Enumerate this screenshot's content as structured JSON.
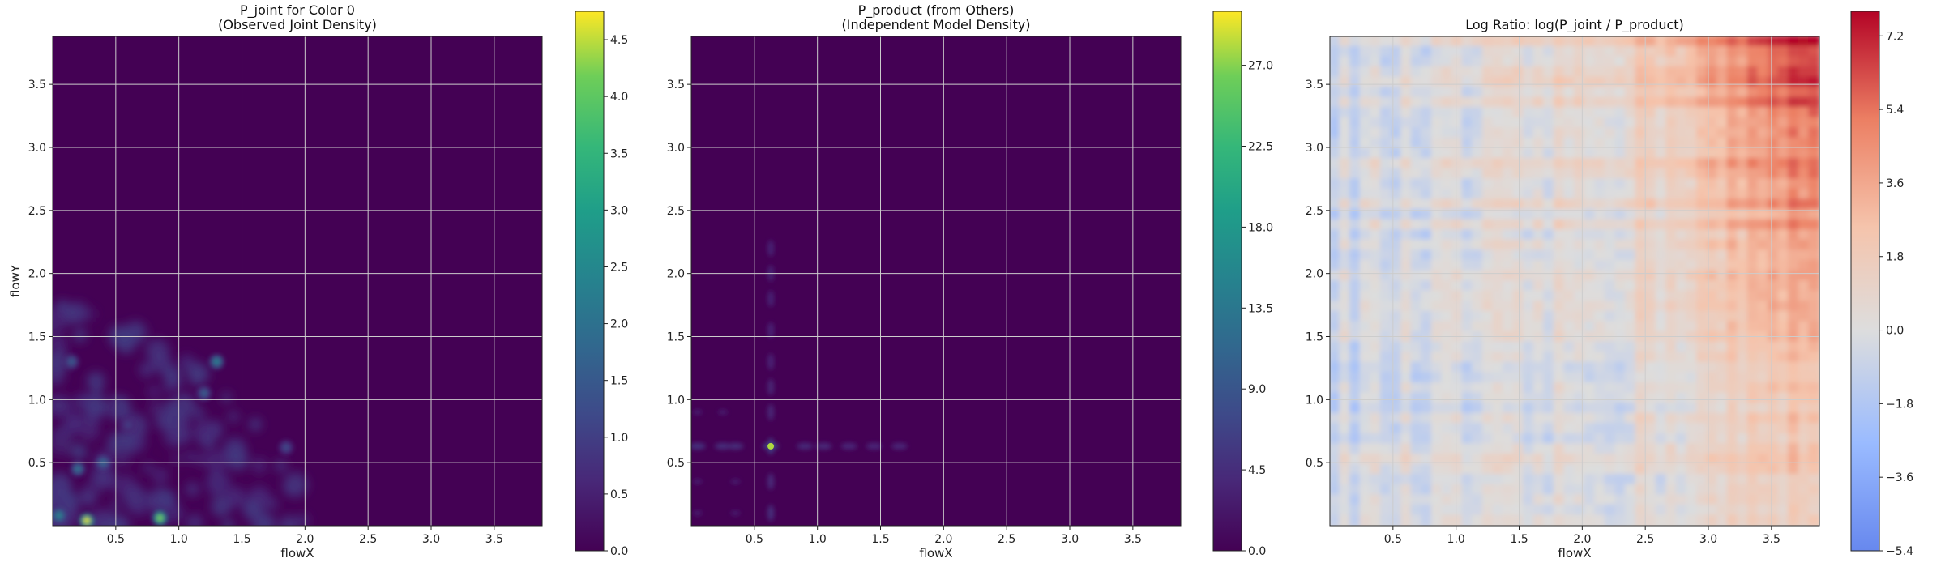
{
  "colors": {
    "viridis_low": "#440154",
    "viridis_high": "#fde725",
    "coolwarm_low": "#3b4cc0",
    "coolwarm_mid": "#dddddd",
    "coolwarm_high": "#b40426",
    "grid": "#cccccc"
  },
  "chart_data": [
    {
      "type": "heatmap",
      "title_line1": "P_joint for Color 0",
      "title_line2": "(Observed Joint Density)",
      "xlabel": "flowX",
      "ylabel": "flowY",
      "xlim": [
        0,
        3.88
      ],
      "ylim": [
        0,
        3.88
      ],
      "xticks": [
        "0.5",
        "1.0",
        "1.5",
        "2.0",
        "2.5",
        "3.0",
        "3.5"
      ],
      "yticks": [
        "0.5",
        "1.0",
        "1.5",
        "2.0",
        "2.5",
        "3.0",
        "3.5"
      ],
      "colormap": "viridis",
      "colorbar_range": [
        0,
        4.75
      ],
      "colorbar_ticks": [
        "0.0",
        "0.5",
        "1.0",
        "1.5",
        "2.0",
        "2.5",
        "3.0",
        "3.5",
        "4.0",
        "4.5"
      ],
      "hotspots": [
        {
          "x": 0.27,
          "y": 0.04,
          "value": 4.6
        },
        {
          "x": 0.85,
          "y": 0.06,
          "value": 4.2
        },
        {
          "x": 0.05,
          "y": 0.08,
          "value": 2.4
        },
        {
          "x": 0.4,
          "y": 0.5,
          "value": 1.8
        },
        {
          "x": 0.15,
          "y": 1.3,
          "value": 1.5
        },
        {
          "x": 1.3,
          "y": 1.3,
          "value": 2.3
        },
        {
          "x": 1.2,
          "y": 1.05,
          "value": 1.6
        },
        {
          "x": 0.2,
          "y": 0.45,
          "value": 2.0
        },
        {
          "x": 1.85,
          "y": 0.62,
          "value": 1.2
        },
        {
          "x": 0.6,
          "y": 0.8,
          "value": 1.0
        }
      ]
    },
    {
      "type": "heatmap",
      "title_line1": "P_product (from Others)",
      "title_line2": "(Independent Model Density)",
      "xlabel": "flowX",
      "ylabel": "",
      "xlim": [
        0,
        3.88
      ],
      "ylim": [
        0,
        3.88
      ],
      "xticks": [
        "0.5",
        "1.0",
        "1.5",
        "2.0",
        "2.5",
        "3.0",
        "3.5"
      ],
      "yticks": [
        "0.5",
        "1.0",
        "1.5",
        "2.0",
        "2.5",
        "3.0",
        "3.5"
      ],
      "colormap": "viridis",
      "colorbar_range": [
        0,
        30
      ],
      "colorbar_ticks": [
        "0.0",
        "4.5",
        "9.0",
        "13.5",
        "18.0",
        "22.5",
        "27.0"
      ],
      "cross_center": {
        "x": 0.63,
        "y": 0.63,
        "value": 28
      }
    },
    {
      "type": "heatmap",
      "title_line1": "Log Ratio: log(P_joint / P_product)",
      "title_line2": "",
      "xlabel": "flowX",
      "ylabel": "",
      "xlim": [
        0,
        3.88
      ],
      "ylim": [
        0,
        3.88
      ],
      "xticks": [
        "0.5",
        "1.0",
        "1.5",
        "2.0",
        "2.5",
        "3.0",
        "3.5"
      ],
      "yticks": [
        "0.5",
        "1.0",
        "1.5",
        "2.0",
        "2.5",
        "3.0",
        "3.5"
      ],
      "colormap": "coolwarm",
      "colorbar_range": [
        -5.4,
        7.8
      ],
      "colorbar_ticks": [
        "−5.4",
        "−3.6",
        "−1.8",
        "0.0",
        "1.8",
        "3.6",
        "5.4",
        "7.2"
      ],
      "trend": "increasing toward top-right (high flowX, high flowY)"
    }
  ]
}
